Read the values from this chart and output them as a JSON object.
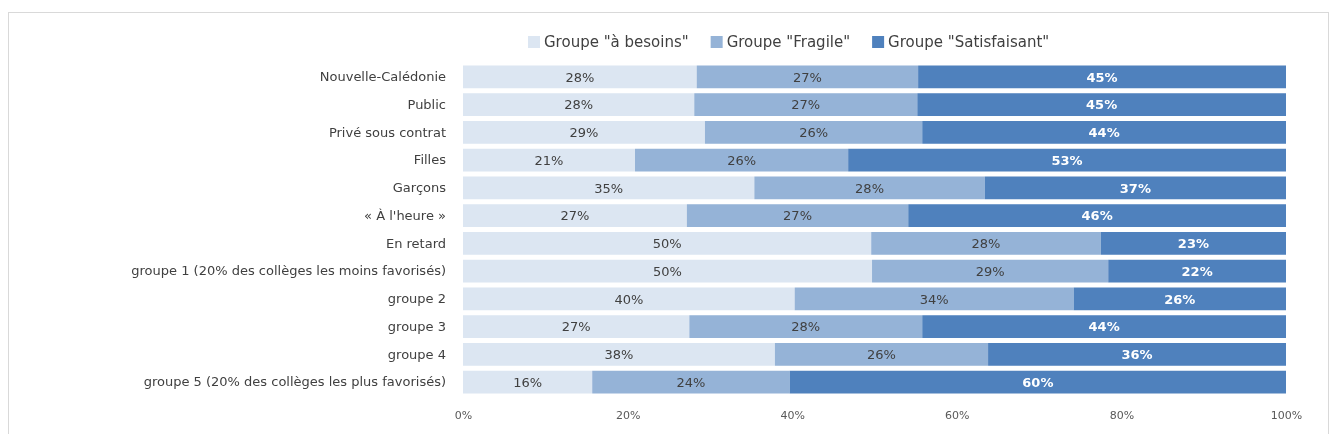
{
  "chart_data": {
    "type": "bar",
    "orientation": "horizontal",
    "stacked": true,
    "categories": [
      "Nouvelle-Calédonie",
      "Public",
      "Privé sous contrat",
      "Filles",
      "Garçons",
      "« À l'heure »",
      "En retard",
      "groupe 1 (20% des collèges les moins favorisés)",
      "groupe 2",
      "groupe 3",
      "groupe 4",
      "groupe 5  (20% des collèges les plus favorisés)"
    ],
    "series": [
      {
        "name": "Groupe \"à besoins\"",
        "color": "#dce6f2",
        "values": [
          28.4,
          28.1,
          29.4,
          20.9,
          35.4,
          27.2,
          49.6,
          49.7,
          40.3,
          27.5,
          37.9,
          15.7
        ],
        "value_labels": [
          "28%",
          "28%",
          "29%",
          "21%",
          "35%",
          "27%",
          "50%",
          "50%",
          "40%",
          "27%",
          "38%",
          "16%"
        ]
      },
      {
        "name": "Groupe \"Fragile\"",
        "color": "#95b3d7",
        "values": [
          26.9,
          27.1,
          26.4,
          25.9,
          28.0,
          26.9,
          27.9,
          28.7,
          33.9,
          28.3,
          25.9,
          24.0
        ],
        "value_labels": [
          "27%",
          "27%",
          "26%",
          "26%",
          "28%",
          "27%",
          "28%",
          "29%",
          "34%",
          "28%",
          "26%",
          "24%"
        ]
      },
      {
        "name": "Groupe \"Satisfaisant\"",
        "color": "#4f81bd",
        "values": [
          44.7,
          44.8,
          44.2,
          53.2,
          36.6,
          45.9,
          22.5,
          21.6,
          25.8,
          44.2,
          36.2,
          60.3
        ],
        "value_labels": [
          "45%",
          "45%",
          "44%",
          "53%",
          "37%",
          "46%",
          "23%",
          "22%",
          "26%",
          "44%",
          "36%",
          "60%"
        ]
      }
    ],
    "xlim": [
      0,
      100
    ],
    "xticks": [
      {
        "value": 0,
        "label": "0%"
      },
      {
        "value": 20,
        "label": "20%"
      },
      {
        "value": 40,
        "label": "40%"
      },
      {
        "value": 60,
        "label": "60%"
      },
      {
        "value": 80,
        "label": "80%"
      },
      {
        "value": 100,
        "label": "100%"
      }
    ],
    "grid": false,
    "legend": "top"
  }
}
